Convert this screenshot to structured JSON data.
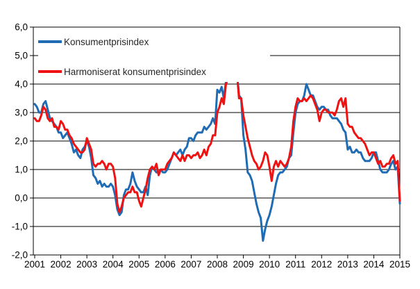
{
  "chart_data": {
    "type": "line",
    "title": "",
    "xlabel": "",
    "ylabel": "",
    "frequency": "monthly",
    "x_start": "2001-01",
    "x_end": "2015-01",
    "x_tick_labels": [
      "2001",
      "2002",
      "2003",
      "2004",
      "2005",
      "2006",
      "2007",
      "2008",
      "2009",
      "2010",
      "2011",
      "2012",
      "2013",
      "2014",
      "2015"
    ],
    "y_tick_labels": [
      "6,0",
      "5,0",
      "4,0",
      "3,0",
      "2,0",
      "1,0",
      "0,0",
      "-1,0",
      "-2,0"
    ],
    "ylim": [
      -2.0,
      6.0
    ],
    "y_gridline_step": 1.0,
    "grid": "horizontal-only",
    "legend_position": "inside-top-left",
    "axis_color": "#000000",
    "background_color": "#ffffff",
    "series": [
      {
        "name": "Konsumentprisindex",
        "color": "#1f6cb5",
        "values": [
          3.3,
          3.2,
          3.0,
          3.0,
          3.3,
          3.4,
          3.1,
          2.8,
          2.7,
          2.6,
          2.5,
          2.3,
          2.3,
          2.1,
          2.2,
          2.3,
          2.1,
          1.9,
          1.6,
          1.7,
          1.5,
          1.4,
          1.7,
          1.8,
          2.0,
          1.8,
          1.4,
          0.8,
          0.7,
          0.5,
          0.6,
          0.4,
          0.5,
          0.4,
          0.4,
          0.5,
          0.4,
          0.1,
          -0.4,
          -0.6,
          -0.5,
          0.1,
          0.3,
          0.3,
          0.5,
          0.9,
          0.6,
          0.4,
          0.3,
          0.2,
          0.2,
          0.4,
          0.1,
          0.8,
          1.1,
          1.0,
          0.9,
          0.9,
          1.0,
          0.9,
          0.9,
          1.0,
          1.2,
          1.4,
          1.6,
          1.5,
          1.6,
          1.7,
          1.5,
          1.7,
          1.8,
          2.1,
          2.1,
          2.0,
          2.2,
          2.3,
          2.3,
          2.3,
          2.5,
          2.4,
          2.5,
          2.6,
          2.8,
          2.6,
          3.8,
          3.7,
          3.9,
          3.5,
          4.1,
          4.3,
          4.4,
          4.7,
          4.7,
          4.5,
          3.6,
          3.5,
          2.2,
          1.7,
          0.9,
          0.8,
          0.6,
          0.2,
          -0.2,
          -0.5,
          -0.7,
          -1.5,
          -1.1,
          -0.8,
          -0.6,
          -0.3,
          0.1,
          0.5,
          0.8,
          0.9,
          0.9,
          1.0,
          1.1,
          1.4,
          1.5,
          2.3,
          3.0,
          3.3,
          3.4,
          3.4,
          3.6,
          4.0,
          3.8,
          3.6,
          3.6,
          3.4,
          3.2,
          3.1,
          3.2,
          3.2,
          3.1,
          3.1,
          2.9,
          2.8,
          2.8,
          2.8,
          2.7,
          2.6,
          2.4,
          2.3,
          1.7,
          1.8,
          1.6,
          1.6,
          1.7,
          1.6,
          1.6,
          1.4,
          1.3,
          1.3,
          1.3,
          1.4,
          1.6,
          1.6,
          1.3,
          1.0,
          0.9,
          0.9,
          0.9,
          1.0,
          1.2,
          1.3,
          1.0,
          1.1,
          -0.2
        ]
      },
      {
        "name": "Harmoniserat konsumentprisindex",
        "color": "#ee1312",
        "values": [
          2.8,
          2.7,
          2.7,
          2.9,
          3.2,
          3.1,
          2.8,
          2.7,
          2.8,
          2.5,
          2.5,
          2.4,
          2.7,
          2.6,
          2.4,
          2.4,
          2.2,
          2.1,
          1.9,
          1.8,
          1.7,
          1.6,
          1.6,
          1.7,
          2.1,
          1.9,
          1.7,
          1.2,
          1.1,
          1.2,
          1.2,
          1.3,
          1.2,
          1.0,
          1.2,
          1.2,
          1.1,
          0.7,
          -0.2,
          -0.5,
          -0.3,
          0.0,
          0.1,
          0.2,
          0.2,
          0.4,
          0.2,
          0.2,
          -0.1,
          -0.3,
          0.0,
          0.3,
          0.7,
          1.0,
          1.1,
          1.0,
          1.2,
          0.8,
          1.0,
          1.0,
          1.0,
          1.2,
          1.3,
          1.4,
          1.6,
          1.5,
          1.4,
          1.3,
          1.5,
          1.3,
          1.5,
          1.5,
          1.4,
          1.5,
          1.5,
          1.6,
          1.4,
          1.5,
          1.7,
          1.5,
          1.8,
          1.9,
          2.2,
          2.2,
          3.0,
          3.2,
          3.5,
          3.3,
          4.0,
          4.2,
          4.3,
          4.7,
          4.7,
          4.4,
          3.5,
          3.5,
          2.9,
          2.5,
          2.1,
          1.8,
          1.5,
          1.3,
          1.2,
          1.0,
          1.1,
          1.3,
          1.6,
          1.5,
          1.1,
          0.6,
          1.1,
          1.3,
          1.1,
          1.3,
          1.2,
          1.1,
          1.2,
          1.4,
          1.8,
          2.7,
          3.2,
          3.5,
          3.4,
          3.4,
          3.5,
          3.4,
          3.5,
          3.6,
          3.5,
          3.3,
          3.1,
          2.7,
          3.0,
          3.1,
          3.1,
          3.0,
          3.0,
          3.0,
          2.9,
          3.1,
          3.4,
          3.5,
          3.2,
          3.5,
          2.6,
          2.5,
          2.5,
          2.3,
          2.2,
          2.1,
          2.1,
          2.0,
          1.9,
          1.7,
          1.5,
          1.6,
          1.6,
          1.4,
          1.2,
          1.3,
          1.1,
          1.1,
          1.2,
          1.2,
          1.4,
          1.5,
          1.2,
          1.3,
          -0.1
        ]
      }
    ]
  }
}
